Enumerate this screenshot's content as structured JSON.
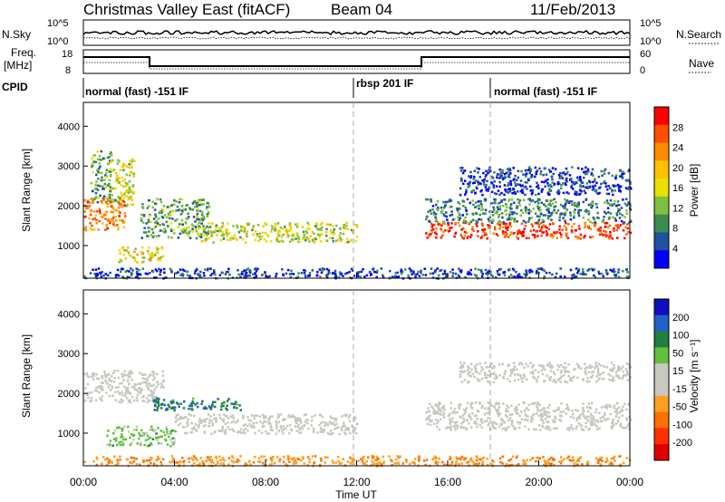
{
  "header": {
    "station": "Christmas Valley East (fitACF)",
    "beam": "Beam 04",
    "date": "11/Feb/2013"
  },
  "top_panels": {
    "nsky_label": "N.Sky",
    "nsky_ticks": [
      "10^5",
      "10^0"
    ],
    "nsearch_label": "N.Search",
    "nsearch_ticks": [
      "10^5",
      "10^0"
    ],
    "freq_label_line1": "Freq.",
    "freq_label_line2": "[MHz]",
    "freq_ticks": [
      "18",
      "8"
    ],
    "nave_label": "Nave",
    "nave_ticks": [
      "60",
      "0"
    ],
    "cpid_label": "CPID",
    "cpid_segments": [
      {
        "label": "normal (fast) -151 IF",
        "start_hour": 0
      },
      {
        "label": "rbsp 201 IF",
        "start_hour": 12
      },
      {
        "label": "normal (fast) -151 IF",
        "start_hour": 18
      }
    ]
  },
  "power_colorbar": {
    "label": "Power [dB]",
    "ticks": [
      "28",
      "24",
      "20",
      "16",
      "12",
      "8",
      "4"
    ],
    "colors": [
      "#ff0000",
      "#ff5000",
      "#ff8c00",
      "#ffc000",
      "#e8e000",
      "#7fc040",
      "#3c8c50",
      "#2050a0",
      "#0000ff"
    ]
  },
  "velocity_colorbar": {
    "label": "Velocity [m s⁻¹]",
    "ticks": [
      "200",
      "100",
      "50",
      "15",
      "-15",
      "-50",
      "-100",
      "-200"
    ],
    "colors": [
      "#1010c0",
      "#2060c8",
      "#208040",
      "#60c040",
      "#c8c8c0",
      "#c8c8c0",
      "#ffa020",
      "#ff7000",
      "#ff3000",
      "#e00000"
    ]
  },
  "axes": {
    "ylabel": "Slant Range [km]",
    "yticks": [
      "4000",
      "3000",
      "2000",
      "1000"
    ],
    "xlabel": "Time UT",
    "xticks": [
      "00:00",
      "04:00",
      "08:00",
      "12:00",
      "16:00",
      "20:00",
      "00:00"
    ]
  },
  "chart_data": [
    {
      "type": "heatmap",
      "title": "",
      "variable": "Power",
      "unit": "dB",
      "xlabel": "Time UT",
      "ylabel": "Slant Range [km]",
      "x_range_hours": [
        0,
        24
      ],
      "ylim": [
        180,
        4600
      ],
      "colorscale": [
        4,
        30
      ],
      "scatter_regions": [
        {
          "t0": 0.3,
          "t1": 1.2,
          "r0": 2100,
          "r1": 3400,
          "db": 12
        },
        {
          "t0": 1.0,
          "t1": 2.2,
          "r0": 2000,
          "r1": 3200,
          "db": 16
        },
        {
          "t0": 0.0,
          "t1": 1.8,
          "r0": 1400,
          "r1": 2200,
          "db": 24
        },
        {
          "t0": 1.5,
          "t1": 3.5,
          "r0": 600,
          "r1": 1000,
          "db": 18
        },
        {
          "t0": 2.5,
          "t1": 5.5,
          "r0": 1200,
          "r1": 2200,
          "db": 12
        },
        {
          "t0": 5.0,
          "t1": 12.0,
          "r0": 1100,
          "r1": 1600,
          "db": 16
        },
        {
          "t0": 15.0,
          "t1": 24.0,
          "r0": 1200,
          "r1": 1600,
          "db": 28
        },
        {
          "t0": 15.0,
          "t1": 24.0,
          "r0": 1600,
          "r1": 2200,
          "db": 10
        },
        {
          "t0": 16.5,
          "t1": 24.0,
          "r0": 2300,
          "r1": 3000,
          "db": 6
        },
        {
          "t0": 0.0,
          "t1": 24.0,
          "r0": 200,
          "r1": 450,
          "db": 6
        }
      ]
    },
    {
      "type": "heatmap",
      "title": "",
      "variable": "Velocity",
      "unit": "m s-1",
      "xlabel": "Time UT",
      "ylabel": "Slant Range [km]",
      "x_range_hours": [
        0,
        24
      ],
      "ylim": [
        180,
        4600
      ],
      "colorscale": [
        -200,
        200
      ],
      "scatter_regions": [
        {
          "t0": 0.0,
          "t1": 3.5,
          "r0": 1800,
          "r1": 2600,
          "v": 0
        },
        {
          "t0": 3.0,
          "t1": 7.0,
          "r0": 1600,
          "r1": 1900,
          "v": 120
        },
        {
          "t0": 1.0,
          "t1": 4.0,
          "r0": 700,
          "r1": 1200,
          "v": 60
        },
        {
          "t0": 4.0,
          "t1": 12.0,
          "r0": 1000,
          "r1": 1500,
          "v": 0
        },
        {
          "t0": 15.0,
          "t1": 24.0,
          "r0": 1100,
          "r1": 1800,
          "v": 0
        },
        {
          "t0": 16.5,
          "t1": 24.0,
          "r0": 2300,
          "r1": 2800,
          "v": 0
        },
        {
          "t0": 0.0,
          "t1": 24.0,
          "r0": 200,
          "r1": 450,
          "v": -80
        }
      ]
    }
  ]
}
